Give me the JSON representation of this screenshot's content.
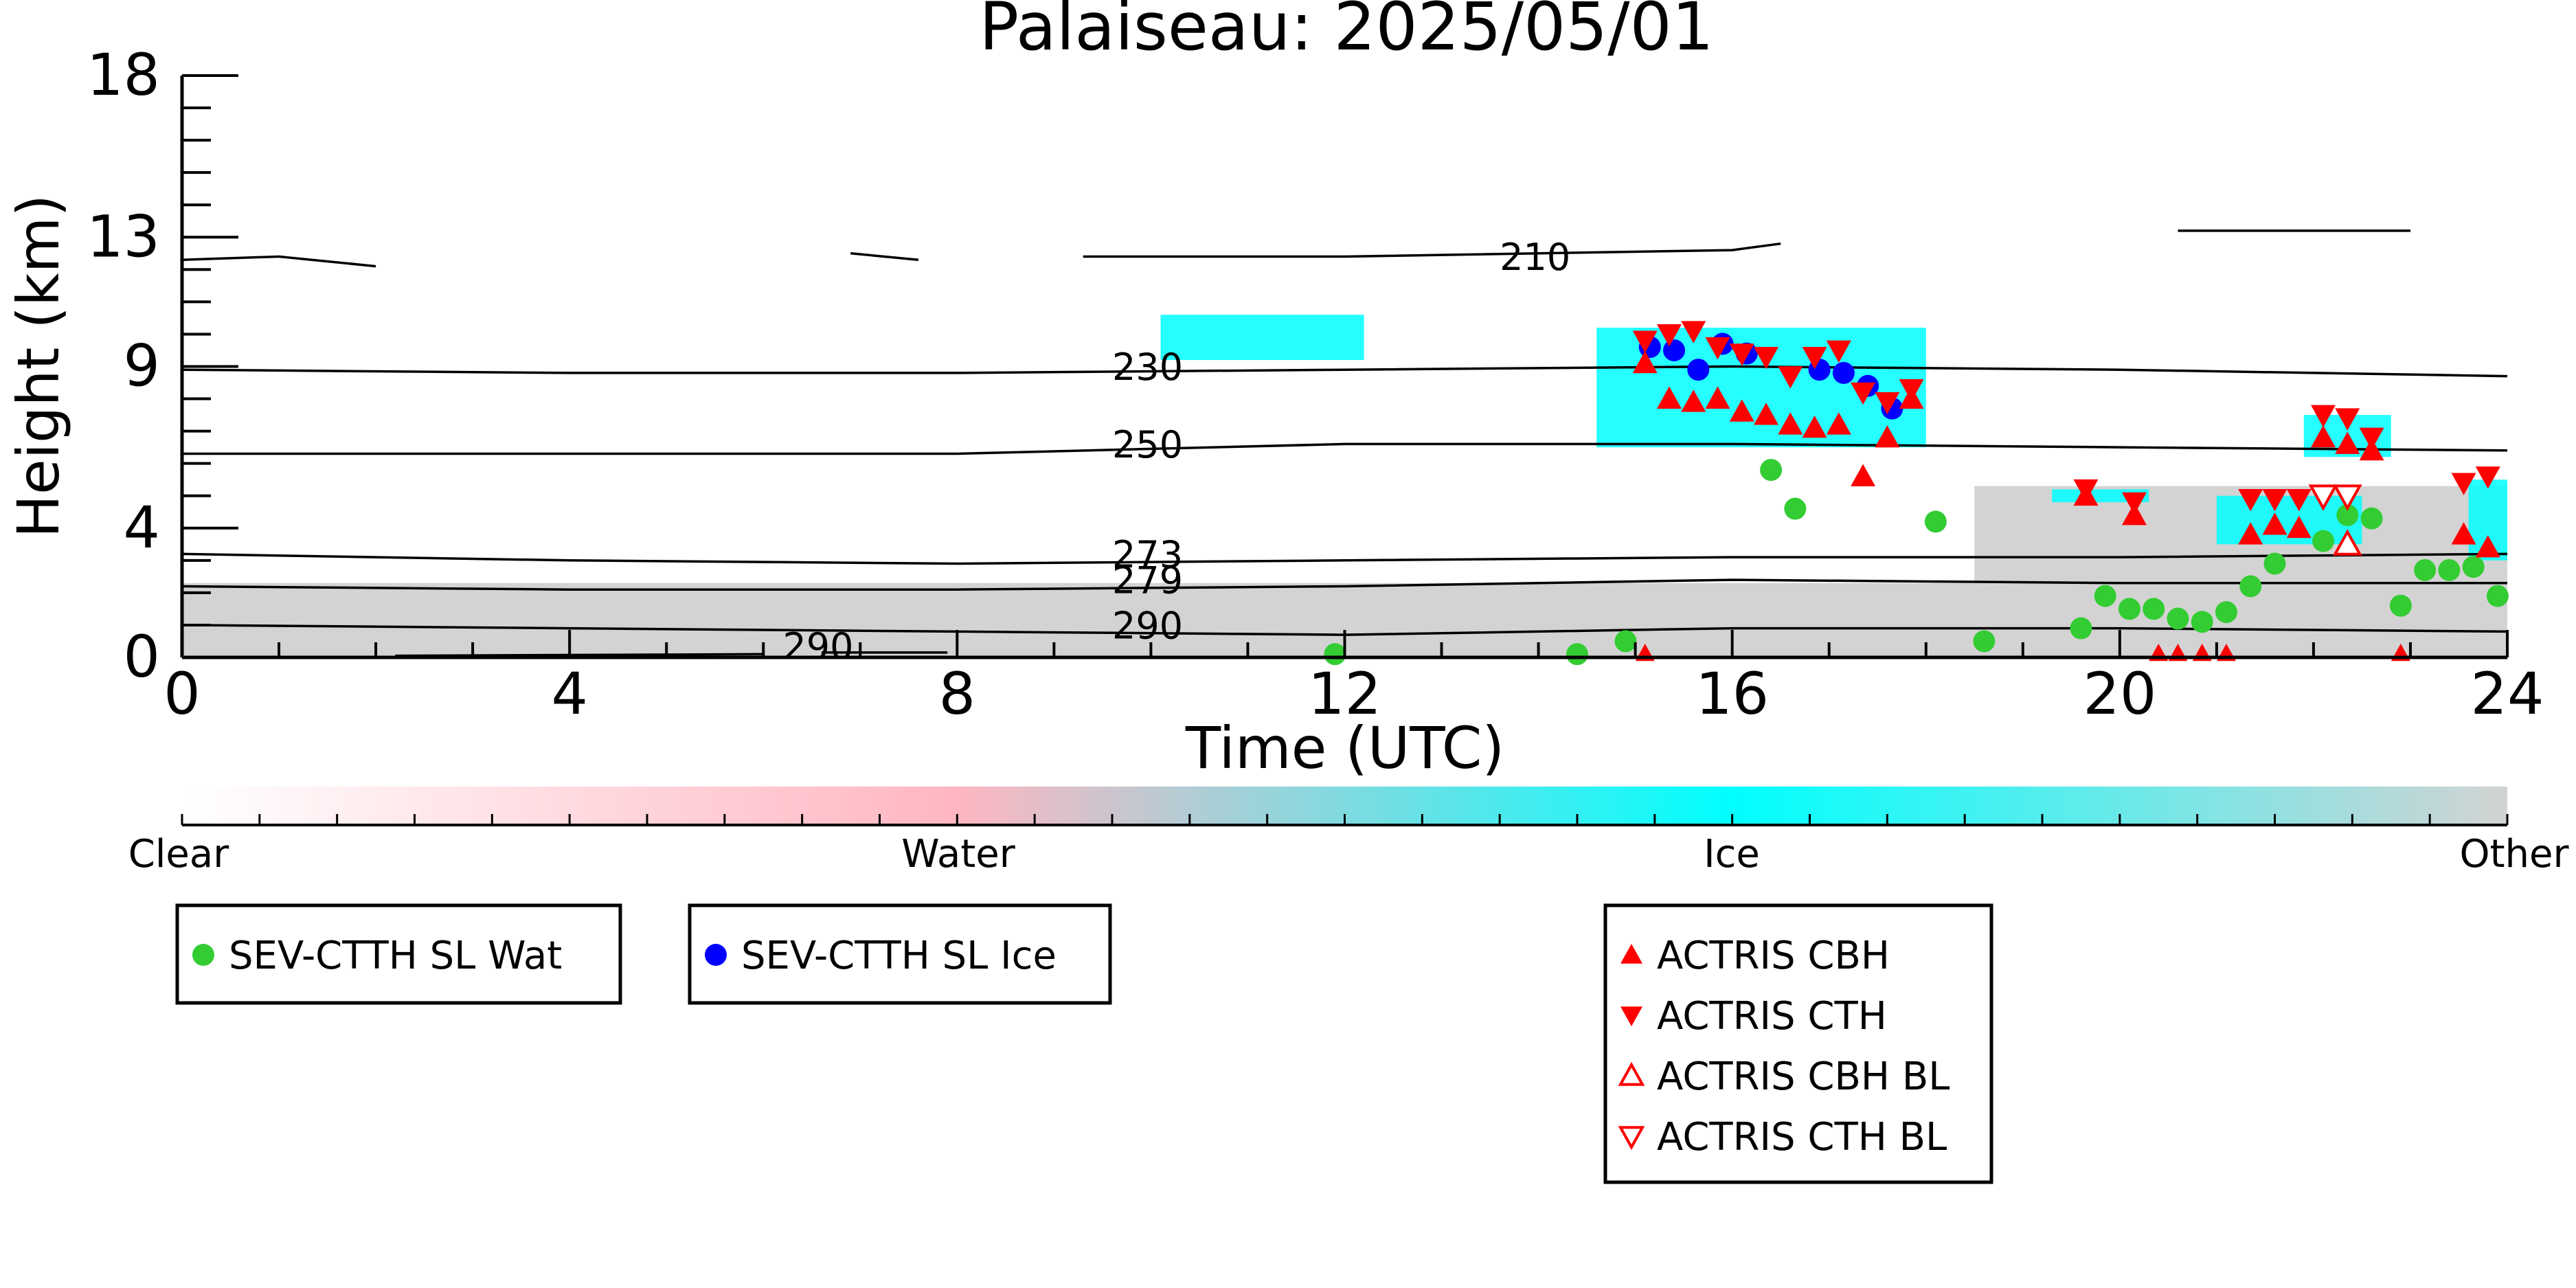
{
  "chart_data": {
    "type": "scatter",
    "title": "Palaiseau: 2025/05/01",
    "xlabel": "Time (UTC)",
    "ylabel": "Height (km)",
    "xlim": [
      0,
      24
    ],
    "ylim": [
      0,
      18
    ],
    "x_ticks": [
      0,
      4,
      8,
      12,
      16,
      20,
      24
    ],
    "y_ticks": [
      0,
      4,
      9,
      13,
      18
    ],
    "background_layers": [
      {
        "class": "Other",
        "color": "#d3d3d3",
        "x": [
          0,
          24
        ],
        "y": [
          0,
          2.3
        ]
      },
      {
        "class": "Other",
        "color": "#d3d3d3",
        "x": [
          18.5,
          24
        ],
        "y": [
          2.3,
          5.3
        ]
      },
      {
        "class": "Ice",
        "color": "#00ffff",
        "x": [
          14.6,
          18.0
        ],
        "y": [
          6.5,
          10.2
        ]
      },
      {
        "class": "Ice",
        "color": "#00ffff",
        "x": [
          21.9,
          22.8
        ],
        "y": [
          6.2,
          7.5
        ]
      },
      {
        "class": "Ice",
        "color": "#00ffff",
        "x": [
          21.0,
          22.5
        ],
        "y": [
          3.5,
          5.0
        ]
      },
      {
        "class": "Ice",
        "color": "#00ffff",
        "x": [
          23.6,
          24
        ],
        "y": [
          3.0,
          5.5
        ]
      },
      {
        "class": "Ice",
        "color": "#00ffff",
        "x": [
          10.1,
          12.2
        ],
        "y": [
          9.2,
          10.6
        ]
      },
      {
        "class": "Ice",
        "color": "#00ffff",
        "x": [
          19.3,
          20.3
        ],
        "y": [
          4.8,
          5.2
        ]
      }
    ],
    "contours": [
      {
        "label": "210",
        "segments": [
          [
            [
              0,
              12.3
            ],
            [
              1,
              12.4
            ],
            [
              2,
              12.1
            ]
          ],
          [
            [
              6.9,
              12.5
            ],
            [
              7.6,
              12.3
            ]
          ],
          [
            [
              9.3,
              12.4
            ],
            [
              12,
              12.4
            ],
            [
              16.0,
              12.6
            ],
            [
              16.5,
              12.8
            ]
          ],
          [
            [
              20.6,
              13.2
            ],
            [
              23.0,
              13.2
            ]
          ]
        ],
        "label_pos": [
          13.6,
          12.2
        ]
      },
      {
        "label": "230",
        "points": [
          [
            0,
            8.9
          ],
          [
            4,
            8.8
          ],
          [
            8,
            8.8
          ],
          [
            12,
            8.9
          ],
          [
            16,
            9.0
          ],
          [
            20,
            8.9
          ],
          [
            24,
            8.7
          ]
        ],
        "label_pos": [
          9.6,
          8.8
        ]
      },
      {
        "label": "250",
        "points": [
          [
            0,
            6.3
          ],
          [
            4,
            6.3
          ],
          [
            8,
            6.3
          ],
          [
            12,
            6.6
          ],
          [
            16,
            6.6
          ],
          [
            20,
            6.5
          ],
          [
            24,
            6.4
          ]
        ],
        "label_pos": [
          9.6,
          6.4
        ]
      },
      {
        "label": "273",
        "points": [
          [
            0,
            3.2
          ],
          [
            4,
            3.0
          ],
          [
            8,
            2.9
          ],
          [
            12,
            3.0
          ],
          [
            16,
            3.1
          ],
          [
            20,
            3.1
          ],
          [
            24,
            3.2
          ]
        ],
        "label_pos": [
          9.6,
          3.0
        ]
      },
      {
        "label": "279",
        "points": [
          [
            0,
            2.2
          ],
          [
            4,
            2.1
          ],
          [
            8,
            2.1
          ],
          [
            12,
            2.2
          ],
          [
            16,
            2.4
          ],
          [
            20,
            2.3
          ],
          [
            24,
            2.3
          ]
        ],
        "label_pos": [
          9.6,
          2.2
        ]
      },
      {
        "label": "290",
        "points": [
          [
            0,
            1.0
          ],
          [
            4,
            0.9
          ],
          [
            8,
            0.8
          ],
          [
            12,
            0.7
          ],
          [
            16,
            0.9
          ],
          [
            20,
            0.9
          ],
          [
            24,
            0.8
          ]
        ],
        "label_pos": [
          9.6,
          0.8
        ]
      },
      {
        "label": "290",
        "segments": [
          [
            [
              2.2,
              0.05
            ],
            [
              6.0,
              0.1
            ]
          ],
          [
            [
              6.6,
              0.15
            ],
            [
              7.9,
              0.15
            ]
          ]
        ],
        "label_pos": [
          6.2,
          0.15
        ]
      }
    ],
    "series": [
      {
        "name": "SEV-CTTH SL Wat",
        "marker": "circle",
        "color": "#33cc33",
        "x": [
          11.9,
          14.4,
          14.9,
          16.4,
          16.65,
          18.1,
          18.6,
          19.6,
          19.85,
          20.1,
          20.35,
          20.6,
          20.85,
          21.1,
          21.35,
          21.6,
          22.1,
          22.35,
          22.6,
          22.9,
          23.15,
          23.4,
          23.65,
          23.9
        ],
        "y": [
          0.1,
          0.1,
          0.5,
          5.8,
          4.6,
          4.2,
          0.5,
          0.9,
          1.9,
          1.5,
          1.5,
          1.2,
          1.1,
          1.4,
          2.2,
          2.9,
          3.6,
          4.4,
          4.3,
          1.6,
          2.7,
          2.7,
          2.8,
          1.9
        ]
      },
      {
        "name": "SEV-CTTH SL Ice",
        "marker": "circle",
        "color": "#0000ff",
        "x": [
          15.15,
          15.4,
          15.65,
          15.9,
          16.15,
          16.9,
          17.15,
          17.4,
          17.65
        ],
        "y": [
          9.6,
          9.5,
          8.9,
          9.7,
          9.4,
          8.9,
          8.8,
          8.4,
          7.7
        ]
      },
      {
        "name": "ACTRIS CBH",
        "marker": "triangle-up",
        "color": "#ff0000",
        "x": [
          15.1,
          15.35,
          15.6,
          15.85,
          16.1,
          16.35,
          16.6,
          16.85,
          17.1,
          17.35,
          17.6,
          17.85,
          19.65,
          20.15,
          21.35,
          21.6,
          21.85,
          22.1,
          22.35,
          22.6,
          23.55,
          23.8
        ],
        "y": [
          9.1,
          8.0,
          7.9,
          8.0,
          7.6,
          7.5,
          7.2,
          7.1,
          7.2,
          5.6,
          6.8,
          8.0,
          5.0,
          4.4,
          3.8,
          4.1,
          4.0,
          6.8,
          6.6,
          6.4,
          3.8,
          3.4
        ],
        "also_at_ground": [
          15.1,
          20.4,
          20.6,
          20.85,
          21.1,
          22.9
        ]
      },
      {
        "name": "ACTRIS CTH",
        "marker": "triangle-down",
        "color": "#ff0000",
        "x": [
          15.1,
          15.35,
          15.6,
          15.85,
          16.1,
          16.35,
          16.6,
          16.85,
          17.1,
          17.35,
          17.6,
          17.85,
          19.65,
          20.15,
          21.35,
          21.6,
          21.85,
          22.1,
          22.35,
          22.6,
          23.55,
          23.8
        ],
        "y": [
          9.8,
          10.0,
          10.1,
          9.6,
          9.4,
          9.3,
          8.7,
          9.3,
          9.5,
          8.2,
          7.9,
          8.3,
          5.2,
          4.8,
          4.9,
          4.9,
          4.9,
          7.5,
          7.4,
          6.8,
          5.4,
          5.6
        ]
      },
      {
        "name": "ACTRIS CBH BL",
        "marker": "triangle-up-open",
        "color": "#ff0000",
        "x": [
          22.35
        ],
        "y": [
          3.5
        ]
      },
      {
        "name": "ACTRIS CTH BL",
        "marker": "triangle-down-open",
        "color": "#ff0000",
        "x": [
          22.1,
          22.35
        ],
        "y": [
          5.0,
          5.0
        ]
      }
    ],
    "colorbar": {
      "labels": [
        "Clear",
        "Water",
        "Ice",
        "Other"
      ],
      "colors": [
        "#ffffff",
        "#ffb6c1",
        "#00ffff",
        "#d3d3d3"
      ]
    },
    "legend_placement": "bottom"
  },
  "legends": {
    "box1": [
      {
        "label": "SEV-CTTH SL Wat",
        "marker": "circle",
        "color": "#33cc33"
      }
    ],
    "box2": [
      {
        "label": "SEV-CTTH SL Ice",
        "marker": "circle",
        "color": "#0000ff"
      }
    ],
    "box3": [
      {
        "label": "ACTRIS CBH",
        "marker": "triangle-up",
        "color": "#ff0000"
      },
      {
        "label": "ACTRIS CTH",
        "marker": "triangle-down",
        "color": "#ff0000"
      },
      {
        "label": "ACTRIS CBH BL",
        "marker": "triangle-up-open",
        "color": "#ff0000"
      },
      {
        "label": "ACTRIS CTH BL",
        "marker": "triangle-down-open",
        "color": "#ff0000"
      }
    ]
  }
}
